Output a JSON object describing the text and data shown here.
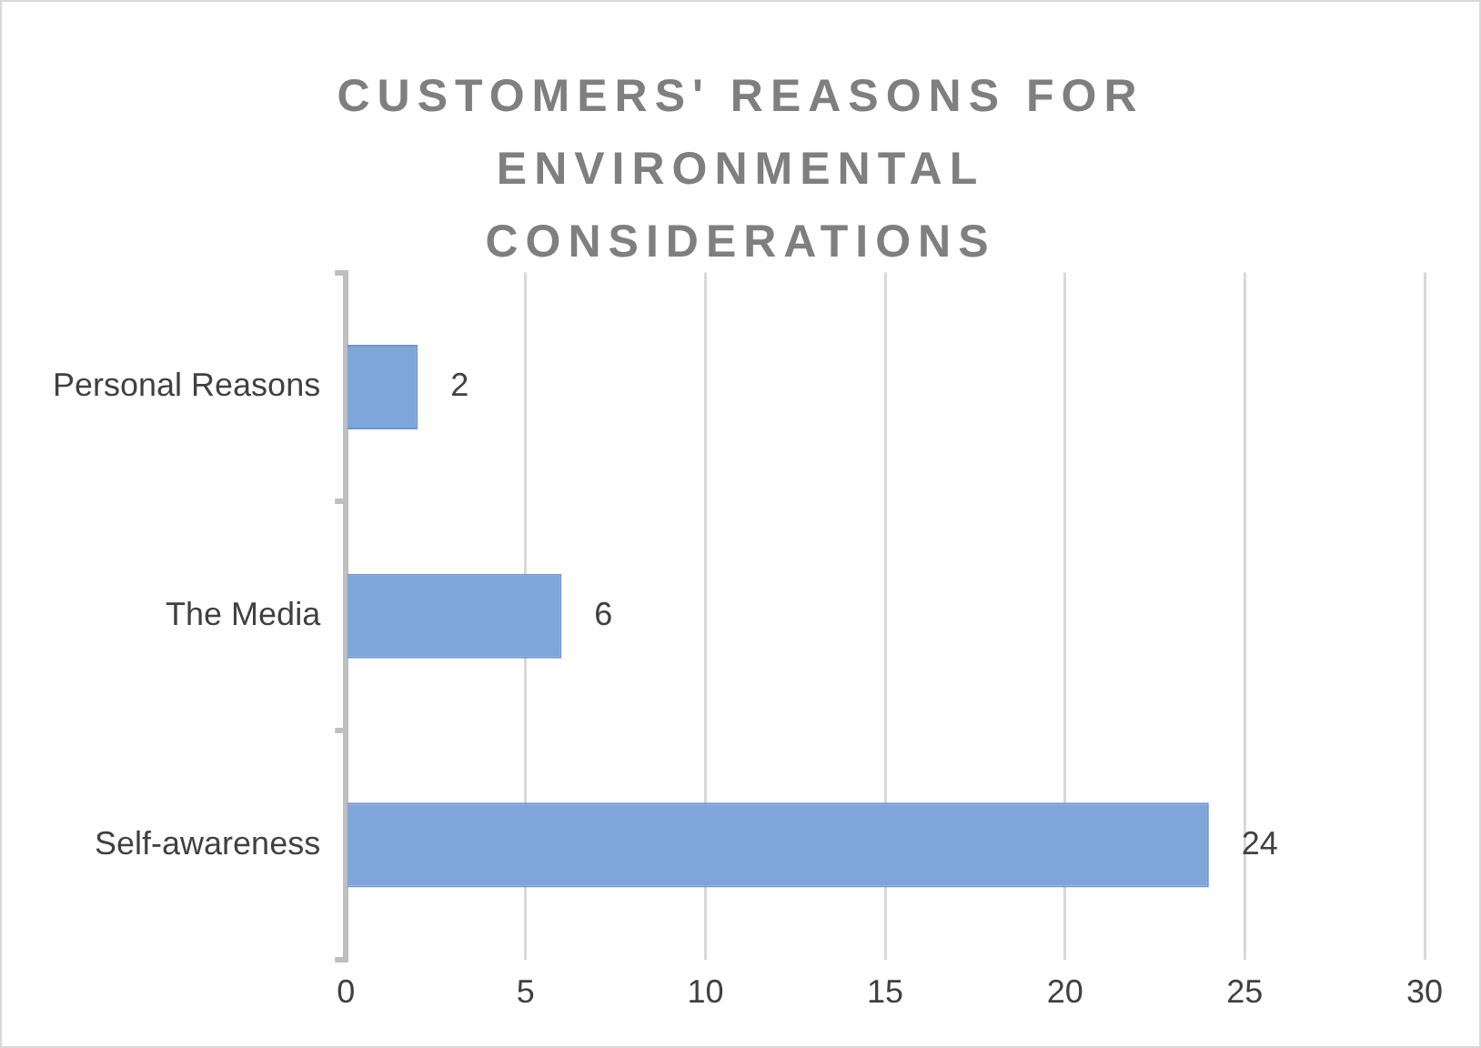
{
  "chart_data": {
    "type": "bar",
    "orientation": "horizontal",
    "title": "CUSTOMERS' REASONS FOR ENVIRONMENTAL CONSIDERATIONS",
    "categories": [
      "Personal Reasons",
      "The Media",
      "Self-awareness"
    ],
    "values": [
      2,
      6,
      24
    ],
    "color": "#7fa6da",
    "xlim": [
      0,
      30
    ],
    "xticks": [
      0,
      5,
      10,
      15,
      20,
      25,
      30
    ],
    "grid": "x",
    "data_labels": true
  }
}
